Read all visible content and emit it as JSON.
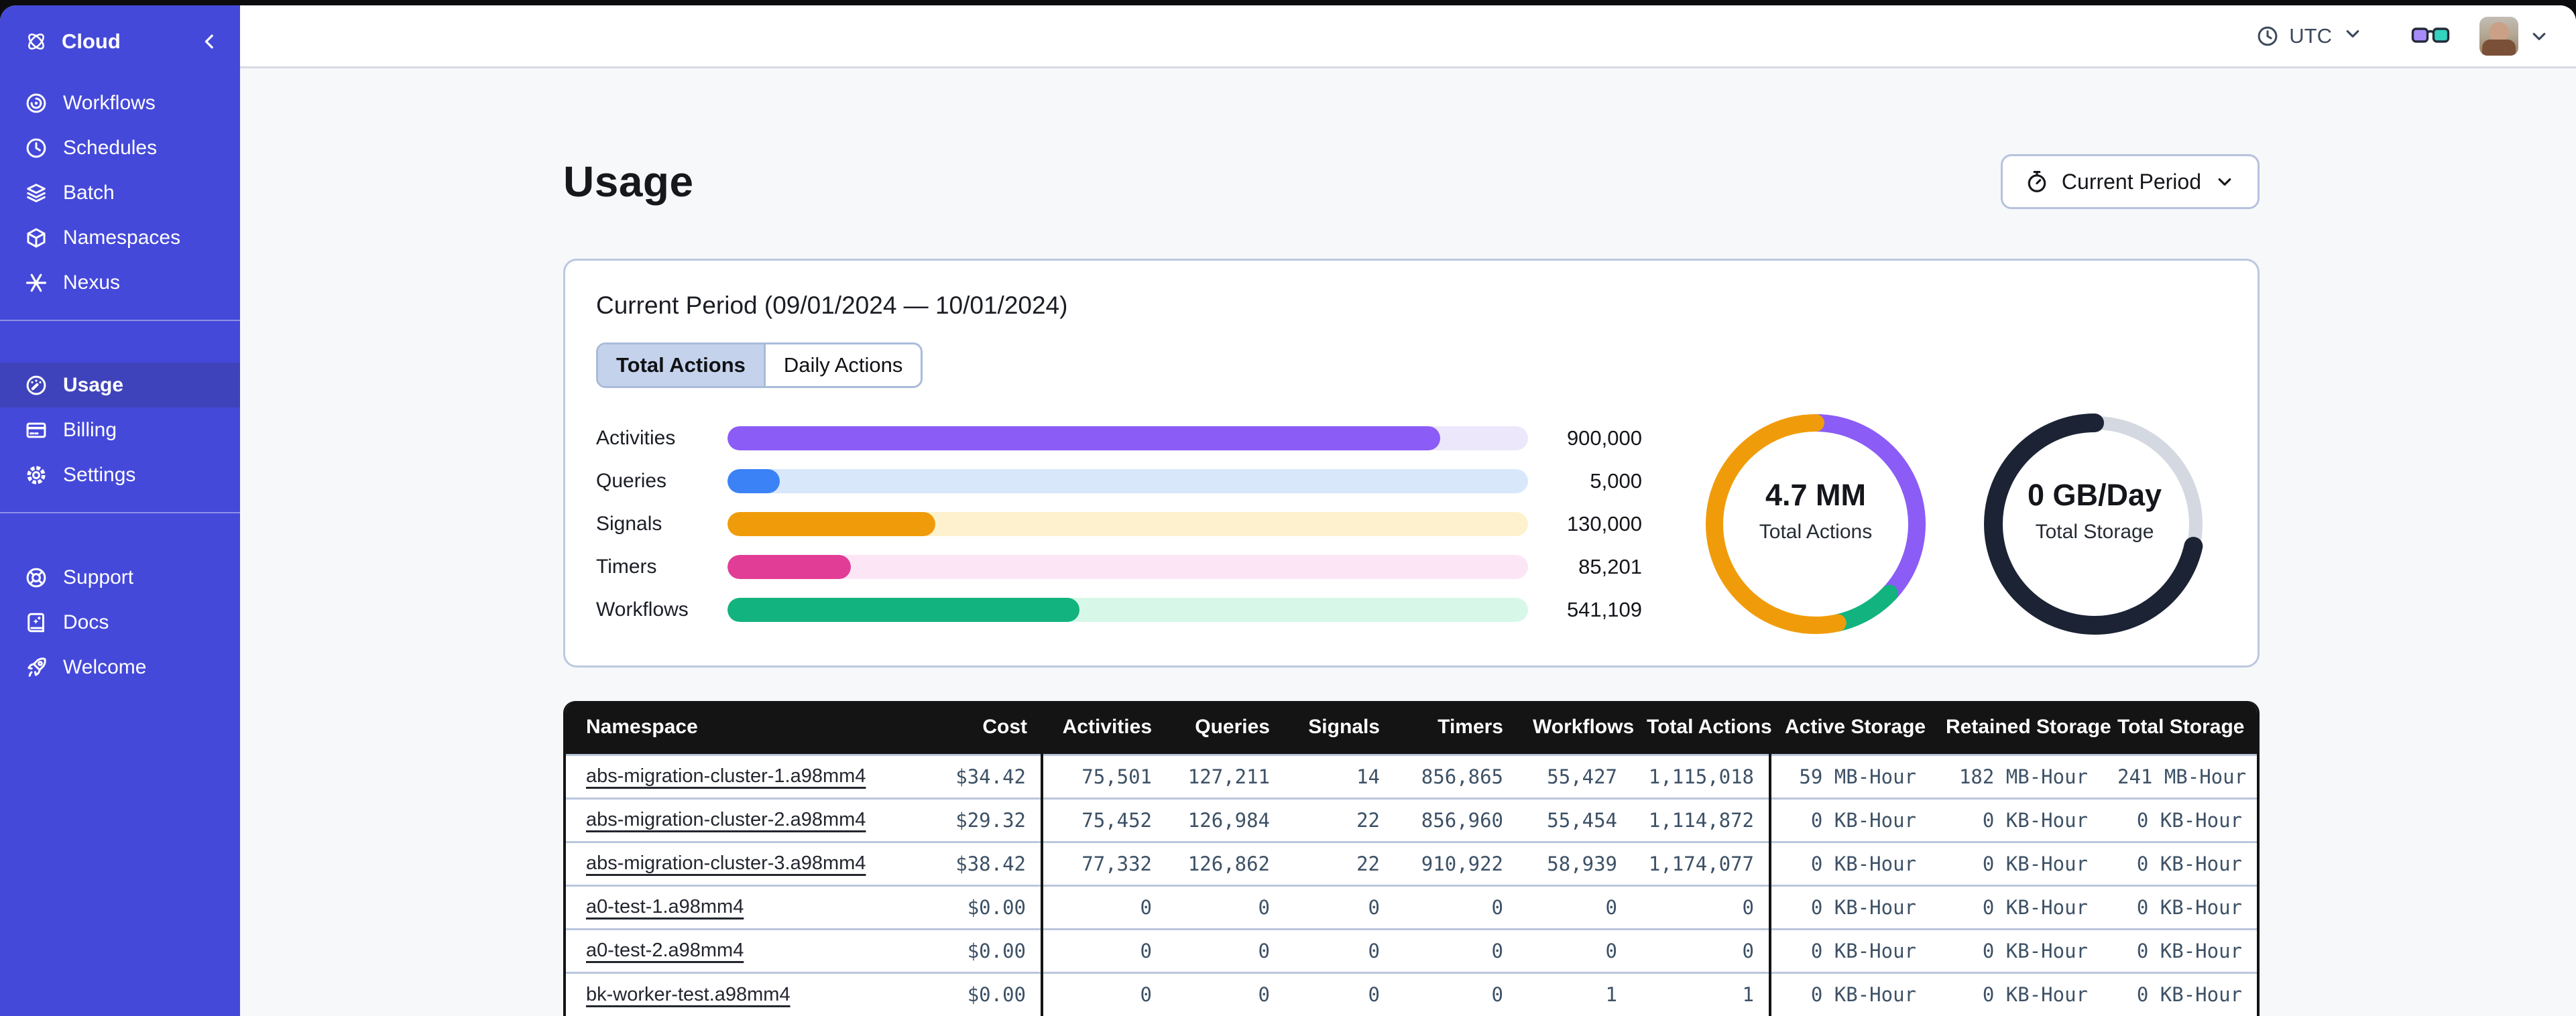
{
  "brand": {
    "name": "Cloud"
  },
  "sidebar": {
    "items": [
      {
        "label": "Workflows",
        "active": false
      },
      {
        "label": "Schedules",
        "active": false
      },
      {
        "label": "Batch",
        "active": false
      },
      {
        "label": "Namespaces",
        "active": false
      },
      {
        "label": "Nexus",
        "active": false
      },
      {
        "label": "Usage",
        "active": true
      },
      {
        "label": "Billing",
        "active": false
      },
      {
        "label": "Settings",
        "active": false
      },
      {
        "label": "Support",
        "active": false
      },
      {
        "label": "Docs",
        "active": false
      },
      {
        "label": "Welcome",
        "active": false
      }
    ]
  },
  "topbar": {
    "timezone": "UTC"
  },
  "page": {
    "title": "Usage",
    "period_selector": "Current Period"
  },
  "usage_card": {
    "title": "Current Period (09/01/2024 — 10/01/2024)",
    "tabs": [
      {
        "label": "Total Actions",
        "active": true
      },
      {
        "label": "Daily Actions",
        "active": false
      }
    ]
  },
  "chart_data": [
    {
      "type": "bar",
      "orientation": "horizontal",
      "categories": [
        "Activities",
        "Queries",
        "Signals",
        "Timers",
        "Workflows"
      ],
      "values": [
        900000,
        5000,
        130000,
        85201,
        541109
      ],
      "display_values": [
        "900,000",
        "5,000",
        "130,000",
        "85,201",
        "541,109"
      ],
      "fill_pct": [
        89,
        6.5,
        26,
        15.4,
        44
      ],
      "colors": [
        "#8b5cf6",
        "#3b82f6",
        "#f09c0a",
        "#e23d96",
        "#12b37e"
      ],
      "track_colors": [
        "#ece7fb",
        "#d9e7fb",
        "#fdf2cd",
        "#fce6f6",
        "#d7f8e9"
      ],
      "legend": false,
      "grid": false,
      "axis_labels_shown": false
    },
    {
      "type": "donut",
      "label": "4.7 MM",
      "sublabel": "Total Actions",
      "segments": [
        {
          "name": "Activities",
          "pct": 37,
          "color": "#8b5cf6",
          "width": 26
        },
        {
          "name": "Workflows",
          "pct": 9.5,
          "color": "#12b37e",
          "width": 26
        },
        {
          "name": "Signals",
          "pct": 53.5,
          "color": "#f09c0a",
          "width": 26
        }
      ]
    },
    {
      "type": "donut",
      "label": "0 GB/Day",
      "sublabel": "Total Storage",
      "segments": [
        {
          "name": "used",
          "pct": 28.5,
          "color": "#d4d8e1",
          "width": 20
        },
        {
          "name": "remaining",
          "pct": 71.5,
          "color": "#1b2334",
          "width": 28
        }
      ]
    }
  ],
  "table": {
    "columns": [
      "Namespace",
      "Cost",
      "Activities",
      "Queries",
      "Signals",
      "Timers",
      "Workflows",
      "Total Actions",
      "Active Storage",
      "Retained Storage",
      "Total Storage"
    ],
    "rows": [
      {
        "namespace": "abs-migration-cluster-1.a98mm4",
        "cost": "$34.42",
        "activities": "75,501",
        "queries": "127,211",
        "signals": "14",
        "timers": "856,865",
        "workflows": "55,427",
        "total_actions": "1,115,018",
        "active_storage": "59 MB-Hour",
        "retained_storage": "182 MB-Hour",
        "total_storage": "241 MB-Hour"
      },
      {
        "namespace": "abs-migration-cluster-2.a98mm4",
        "cost": "$29.32",
        "activities": "75,452",
        "queries": "126,984",
        "signals": "22",
        "timers": "856,960",
        "workflows": "55,454",
        "total_actions": "1,114,872",
        "active_storage": "0 KB-Hour",
        "retained_storage": "0 KB-Hour",
        "total_storage": "0 KB-Hour"
      },
      {
        "namespace": "abs-migration-cluster-3.a98mm4",
        "cost": "$38.42",
        "activities": "77,332",
        "queries": "126,862",
        "signals": "22",
        "timers": "910,922",
        "workflows": "58,939",
        "total_actions": "1,174,077",
        "active_storage": "0 KB-Hour",
        "retained_storage": "0 KB-Hour",
        "total_storage": "0 KB-Hour"
      },
      {
        "namespace": "a0-test-1.a98mm4",
        "cost": "$0.00",
        "activities": "0",
        "queries": "0",
        "signals": "0",
        "timers": "0",
        "workflows": "0",
        "total_actions": "0",
        "active_storage": "0 KB-Hour",
        "retained_storage": "0 KB-Hour",
        "total_storage": "0 KB-Hour"
      },
      {
        "namespace": "a0-test-2.a98mm4",
        "cost": "$0.00",
        "activities": "0",
        "queries": "0",
        "signals": "0",
        "timers": "0",
        "workflows": "0",
        "total_actions": "0",
        "active_storage": "0 KB-Hour",
        "retained_storage": "0 KB-Hour",
        "total_storage": "0 KB-Hour"
      },
      {
        "namespace": "bk-worker-test.a98mm4",
        "cost": "$0.00",
        "activities": "0",
        "queries": "0",
        "signals": "0",
        "timers": "0",
        "workflows": "1",
        "total_actions": "1",
        "active_storage": "0 KB-Hour",
        "retained_storage": "0 KB-Hour",
        "total_storage": "0 KB-Hour"
      }
    ]
  },
  "colors": {
    "sidebar_bg": "#4549d9",
    "sidebar_active_bg": "#3f43bb",
    "content_bg": "#f7f8fa",
    "card_border": "#bcc8e0",
    "tab_active_bg": "#c5d2ec",
    "table_header_bg": "#141414",
    "table_number_text": "#3d5166",
    "row_divider": "#bac6dc"
  }
}
